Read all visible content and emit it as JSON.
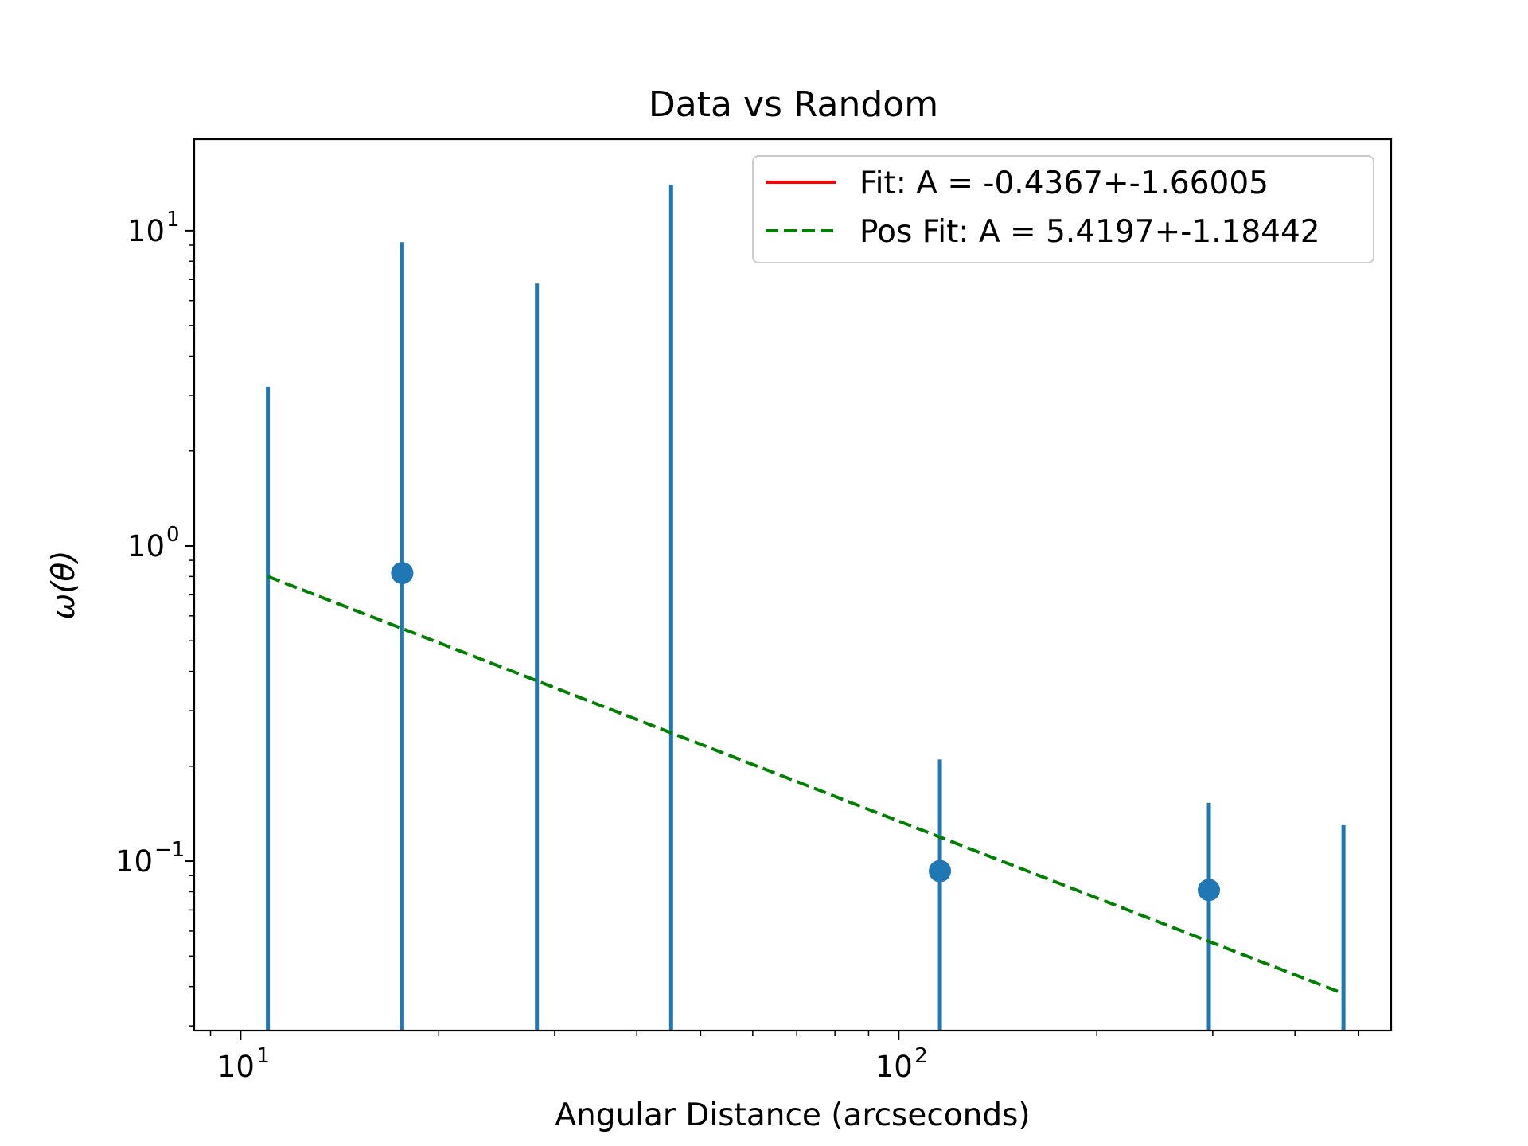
{
  "chart_data": {
    "type": "scatter",
    "title": "Data vs Random",
    "xlabel": "Angular Distance (arcseconds)",
    "ylabel_base": "ω(θ)",
    "xscale": "log",
    "yscale": "log",
    "xlim": [
      8.5,
      560
    ],
    "ylim": [
      0.029,
      19.5
    ],
    "grid": false,
    "legend_position": "upper right",
    "x_ticks": [
      {
        "value": 10,
        "base": "10",
        "exp": "1"
      },
      {
        "value": 100,
        "base": "10",
        "exp": "2"
      }
    ],
    "y_ticks": [
      {
        "value": 0.1,
        "base": "10",
        "exp": "−1"
      },
      {
        "value": 1,
        "base": "10",
        "exp": "0"
      },
      {
        "value": 10,
        "base": "10",
        "exp": "1"
      }
    ],
    "colors": {
      "points": "#1f77b4",
      "fit": "#ff0000",
      "pos_fit": "#008000"
    },
    "points": [
      {
        "x": 11.0,
        "y": null,
        "yerr_low": 0.001,
        "yerr_high": 3.2
      },
      {
        "x": 17.6,
        "y": 0.82,
        "yerr_low": 0.001,
        "yerr_high": 9.2
      },
      {
        "x": 28.2,
        "y": null,
        "yerr_low": 0.001,
        "yerr_high": 6.8
      },
      {
        "x": 45.1,
        "y": null,
        "yerr_low": 0.001,
        "yerr_high": 14.0
      },
      {
        "x": 115.5,
        "y": 0.093,
        "yerr_low": 0.001,
        "yerr_high": 0.21
      },
      {
        "x": 296,
        "y": 0.081,
        "yerr_low": 0.001,
        "yerr_high": 0.153
      },
      {
        "x": 474,
        "y": null,
        "yerr_low": 0.001,
        "yerr_high": 0.13
      }
    ],
    "series": [
      {
        "name": "Fit: A = -0.4367+-1.66005",
        "style": "solid",
        "x": [],
        "y": []
      },
      {
        "name": "Pos Fit: A = 5.4197+-1.18442",
        "style": "dashed",
        "x": [
          11.0,
          474
        ],
        "y": [
          0.8,
          0.038
        ]
      }
    ]
  }
}
